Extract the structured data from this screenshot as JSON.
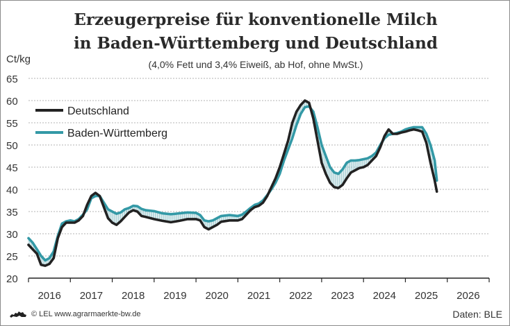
{
  "chart_data": {
    "type": "line",
    "title": "Erzeugerpreise für konventionelle Milch",
    "title_line2": "in Baden-Württemberg und Deutschland",
    "subtitle": "(4,0% Fett und 3,4% Eiweiß, ab Hof, ohne MwSt.)",
    "ylabel": "Ct/kg",
    "xlabel": "",
    "ylim": [
      20,
      65
    ],
    "yticks": [
      20,
      25,
      30,
      35,
      40,
      45,
      50,
      55,
      60,
      65
    ],
    "xlim": [
      2015.5,
      2026.5
    ],
    "xtick_labels": [
      "2016",
      "2017",
      "2018",
      "2019",
      "2020",
      "2021",
      "2022",
      "2023",
      "2024",
      "2025",
      "2026"
    ],
    "grid": "horizontal dashed",
    "legend": "top-left",
    "series": [
      {
        "name": "Deutschland",
        "color": "#222222",
        "points": [
          [
            2015.5,
            27.5
          ],
          [
            2015.6,
            26.5
          ],
          [
            2015.7,
            25.5
          ],
          [
            2015.8,
            23.0
          ],
          [
            2015.9,
            22.8
          ],
          [
            2016.0,
            23.2
          ],
          [
            2016.1,
            24.5
          ],
          [
            2016.2,
            29.0
          ],
          [
            2016.3,
            31.5
          ],
          [
            2016.4,
            32.5
          ],
          [
            2016.5,
            32.5
          ],
          [
            2016.6,
            32.5
          ],
          [
            2016.7,
            33.0
          ],
          [
            2016.8,
            34.0
          ],
          [
            2016.9,
            36.5
          ],
          [
            2017.0,
            38.5
          ],
          [
            2017.1,
            39.2
          ],
          [
            2017.2,
            38.5
          ],
          [
            2017.3,
            36.0
          ],
          [
            2017.4,
            33.5
          ],
          [
            2017.5,
            32.5
          ],
          [
            2017.6,
            32.0
          ],
          [
            2017.7,
            32.8
          ],
          [
            2017.8,
            33.8
          ],
          [
            2017.9,
            34.8
          ],
          [
            2018.0,
            35.3
          ],
          [
            2018.1,
            35.0
          ],
          [
            2018.2,
            34.0
          ],
          [
            2018.3,
            33.8
          ],
          [
            2018.5,
            33.3
          ],
          [
            2018.7,
            32.9
          ],
          [
            2018.9,
            32.6
          ],
          [
            2019.1,
            32.9
          ],
          [
            2019.3,
            33.3
          ],
          [
            2019.5,
            33.3
          ],
          [
            2019.6,
            33.0
          ],
          [
            2019.7,
            31.5
          ],
          [
            2019.8,
            31.0
          ],
          [
            2019.9,
            31.5
          ],
          [
            2020.0,
            32.0
          ],
          [
            2020.1,
            32.7
          ],
          [
            2020.3,
            33.0
          ],
          [
            2020.5,
            33.0
          ],
          [
            2020.6,
            33.3
          ],
          [
            2020.7,
            34.3
          ],
          [
            2020.8,
            35.3
          ],
          [
            2020.9,
            36.0
          ],
          [
            2021.0,
            36.3
          ],
          [
            2021.1,
            37.0
          ],
          [
            2021.2,
            38.5
          ],
          [
            2021.3,
            40.5
          ],
          [
            2021.4,
            42.5
          ],
          [
            2021.5,
            45.0
          ],
          [
            2021.6,
            48.0
          ],
          [
            2021.7,
            51.0
          ],
          [
            2021.8,
            55.0
          ],
          [
            2021.9,
            57.5
          ],
          [
            2022.0,
            59.0
          ],
          [
            2022.1,
            60.0
          ],
          [
            2022.2,
            59.5
          ],
          [
            2022.3,
            56.0
          ],
          [
            2022.4,
            51.0
          ],
          [
            2022.5,
            46.0
          ],
          [
            2022.6,
            43.5
          ],
          [
            2022.7,
            41.5
          ],
          [
            2022.8,
            40.5
          ],
          [
            2022.9,
            40.3
          ],
          [
            2023.0,
            41.0
          ],
          [
            2023.1,
            42.5
          ],
          [
            2023.2,
            43.8
          ],
          [
            2023.3,
            44.3
          ],
          [
            2023.4,
            44.8
          ],
          [
            2023.5,
            45.0
          ],
          [
            2023.6,
            45.5
          ],
          [
            2023.7,
            46.5
          ],
          [
            2023.8,
            47.5
          ],
          [
            2023.9,
            49.5
          ],
          [
            2024.0,
            52.0
          ],
          [
            2024.1,
            53.5
          ],
          [
            2024.2,
            52.5
          ],
          [
            2024.3,
            52.5
          ],
          [
            2024.4,
            52.8
          ],
          [
            2024.5,
            53.0
          ],
          [
            2024.6,
            53.3
          ],
          [
            2024.7,
            53.5
          ],
          [
            2024.8,
            53.3
          ],
          [
            2024.9,
            53.0
          ],
          [
            2025.0,
            50.5
          ],
          [
            2025.1,
            46.0
          ],
          [
            2025.2,
            42.0
          ],
          [
            2025.25,
            39.5
          ]
        ]
      },
      {
        "name": "Baden-Württemberg",
        "color": "#3399a6",
        "points": [
          [
            2015.5,
            29.0
          ],
          [
            2015.6,
            28.0
          ],
          [
            2015.7,
            26.5
          ],
          [
            2015.8,
            25.0
          ],
          [
            2015.9,
            24.0
          ],
          [
            2016.0,
            24.5
          ],
          [
            2016.1,
            26.0
          ],
          [
            2016.2,
            29.5
          ],
          [
            2016.3,
            32.3
          ],
          [
            2016.4,
            32.8
          ],
          [
            2016.5,
            33.0
          ],
          [
            2016.6,
            32.8
          ],
          [
            2016.7,
            33.3
          ],
          [
            2016.8,
            34.3
          ],
          [
            2016.9,
            35.5
          ],
          [
            2017.0,
            38.0
          ],
          [
            2017.1,
            38.5
          ],
          [
            2017.2,
            38.5
          ],
          [
            2017.3,
            37.0
          ],
          [
            2017.4,
            35.5
          ],
          [
            2017.5,
            35.0
          ],
          [
            2017.6,
            34.5
          ],
          [
            2017.7,
            34.8
          ],
          [
            2017.8,
            35.5
          ],
          [
            2017.9,
            35.8
          ],
          [
            2018.0,
            36.3
          ],
          [
            2018.1,
            36.2
          ],
          [
            2018.2,
            35.6
          ],
          [
            2018.3,
            35.3
          ],
          [
            2018.5,
            35.1
          ],
          [
            2018.7,
            34.6
          ],
          [
            2018.9,
            34.4
          ],
          [
            2019.1,
            34.6
          ],
          [
            2019.3,
            34.8
          ],
          [
            2019.5,
            34.7
          ],
          [
            2019.6,
            34.2
          ],
          [
            2019.7,
            33.0
          ],
          [
            2019.8,
            32.8
          ],
          [
            2019.9,
            33.0
          ],
          [
            2020.0,
            33.5
          ],
          [
            2020.1,
            34.0
          ],
          [
            2020.3,
            34.2
          ],
          [
            2020.5,
            34.0
          ],
          [
            2020.6,
            34.3
          ],
          [
            2020.7,
            35.0
          ],
          [
            2020.8,
            35.8
          ],
          [
            2020.9,
            36.5
          ],
          [
            2021.0,
            36.8
          ],
          [
            2021.1,
            37.5
          ],
          [
            2021.2,
            38.7
          ],
          [
            2021.3,
            40.0
          ],
          [
            2021.4,
            41.5
          ],
          [
            2021.5,
            43.5
          ],
          [
            2021.6,
            46.5
          ],
          [
            2021.7,
            49.0
          ],
          [
            2021.8,
            51.5
          ],
          [
            2021.9,
            54.5
          ],
          [
            2022.0,
            57.0
          ],
          [
            2022.1,
            58.5
          ],
          [
            2022.2,
            58.7
          ],
          [
            2022.3,
            57.5
          ],
          [
            2022.4,
            54.0
          ],
          [
            2022.5,
            50.0
          ],
          [
            2022.6,
            47.5
          ],
          [
            2022.7,
            45.0
          ],
          [
            2022.8,
            43.8
          ],
          [
            2022.9,
            43.5
          ],
          [
            2023.0,
            44.5
          ],
          [
            2023.1,
            46.0
          ],
          [
            2023.2,
            46.5
          ],
          [
            2023.3,
            46.5
          ],
          [
            2023.4,
            46.6
          ],
          [
            2023.5,
            46.8
          ],
          [
            2023.6,
            47.0
          ],
          [
            2023.7,
            47.5
          ],
          [
            2023.8,
            48.3
          ],
          [
            2023.9,
            50.0
          ],
          [
            2024.0,
            51.5
          ],
          [
            2024.1,
            52.3
          ],
          [
            2024.2,
            52.5
          ],
          [
            2024.3,
            52.7
          ],
          [
            2024.4,
            53.0
          ],
          [
            2024.5,
            53.5
          ],
          [
            2024.6,
            53.8
          ],
          [
            2024.7,
            54.0
          ],
          [
            2024.8,
            54.0
          ],
          [
            2024.9,
            54.0
          ],
          [
            2025.0,
            52.5
          ],
          [
            2025.1,
            50.0
          ],
          [
            2025.2,
            46.5
          ],
          [
            2025.25,
            42.0
          ]
        ]
      }
    ]
  },
  "footer": {
    "source_left": "© LEL www.agrarmaerkte-bw.de",
    "source_right": "Daten: BLE"
  },
  "icons": {
    "logo": "baden-wuerttemberg-lion-logo-icon"
  }
}
